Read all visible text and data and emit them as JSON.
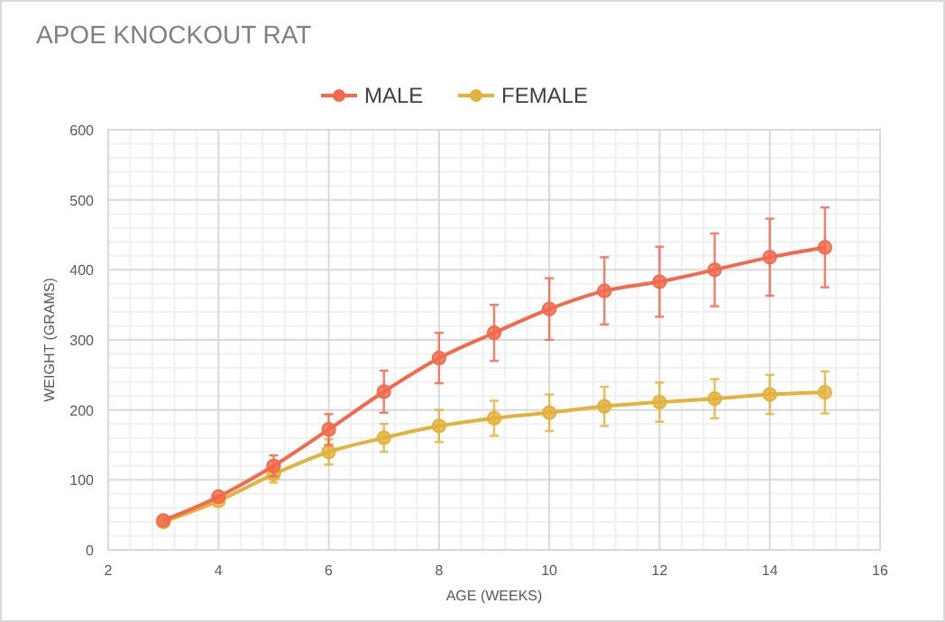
{
  "chart_data": {
    "type": "line",
    "title": "APOE KNOCKOUT RAT",
    "xlabel": "AGE (WEEKS)",
    "ylabel": "WEIGHT (GRAMS)",
    "x": [
      3,
      4,
      5,
      6,
      7,
      8,
      9,
      10,
      11,
      12,
      13,
      14,
      15
    ],
    "series": [
      {
        "name": "MALE",
        "color": "#f2694c",
        "values": [
          42,
          76,
          120,
          172,
          226,
          274,
          310,
          344,
          370,
          383,
          400,
          418,
          432
        ],
        "errors": [
          null,
          null,
          15,
          22,
          30,
          36,
          40,
          44,
          48,
          50,
          52,
          55,
          57
        ]
      },
      {
        "name": "FEMALE",
        "color": "#e3b23c",
        "values": [
          40,
          70,
          108,
          140,
          160,
          177,
          188,
          196,
          205,
          211,
          216,
          222,
          225
        ],
        "errors": [
          null,
          null,
          12,
          18,
          20,
          23,
          25,
          26,
          28,
          28,
          28,
          28,
          30
        ]
      }
    ],
    "xlim": [
      2,
      16
    ],
    "xticks": [
      2,
      4,
      6,
      8,
      10,
      12,
      14,
      16
    ],
    "ylim": [
      0,
      600
    ],
    "yticks": [
      0,
      100,
      200,
      300,
      400,
      500,
      600
    ],
    "grid": true,
    "legend": "top",
    "marker": "circle",
    "line_style": "solid"
  }
}
